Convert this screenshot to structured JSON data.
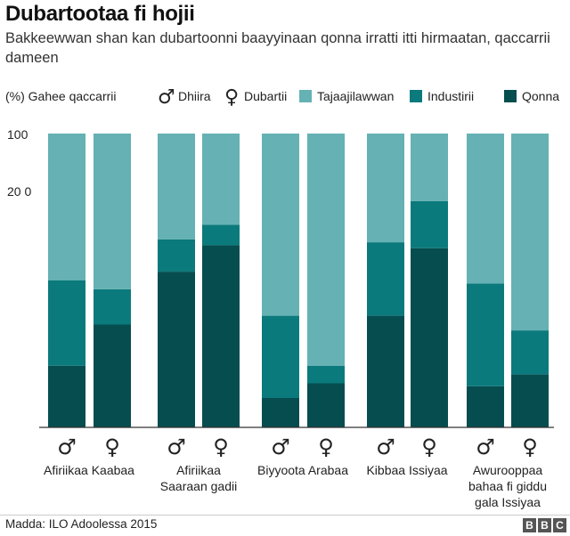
{
  "header": {
    "title": "Dubartootaa fi hojii",
    "subtitle": "Bakkeewwan shan kan dubartoonni baayyinaan qonna irratti itti hirmaatan, qaccarrii dameen"
  },
  "legend": {
    "male": {
      "symbol": "♂",
      "label": "Dhiira"
    },
    "female": {
      "symbol": "♀",
      "label": "Dubartii"
    },
    "series": [
      {
        "name": "Tajaajilawwan",
        "color": "#65b1b3"
      },
      {
        "name": "Industirii",
        "color": "#0b7a7c"
      },
      {
        "name": "Qonna",
        "color": "#064d50"
      }
    ]
  },
  "footer": {
    "source": "Madda: ILO Adoolessa 2015",
    "logo": [
      "B",
      "B",
      "C"
    ]
  },
  "chart_data": {
    "type": "bar",
    "stacked": true,
    "ylabel": "(%) Gahee qaccarrii",
    "y_ticks": [
      "100",
      "20 0"
    ],
    "ylim": [
      0,
      100
    ],
    "groups": [
      {
        "label": "Afiriikaa Kaabaa"
      },
      {
        "label": "Afiriikaa Saaraan gadii"
      },
      {
        "label": "Biyyoota Arabaa"
      },
      {
        "label": "Kibbaa Issiyaa"
      },
      {
        "label": "Awurooppaa bahaa fi giddu gala Issiyaa"
      }
    ],
    "bars": [
      {
        "group": 0,
        "gender": "male",
        "Qonna": 21,
        "Industirii": 29,
        "Tajaajilawwan": 50
      },
      {
        "group": 0,
        "gender": "female",
        "Qonna": 35,
        "Industirii": 12,
        "Tajaajilawwan": 53
      },
      {
        "group": 1,
        "gender": "male",
        "Qonna": 53,
        "Industirii": 11,
        "Tajaajilawwan": 36
      },
      {
        "group": 1,
        "gender": "female",
        "Qonna": 62,
        "Industirii": 7,
        "Tajaajilawwan": 31
      },
      {
        "group": 2,
        "gender": "male",
        "Qonna": 10,
        "Industirii": 28,
        "Tajaajilawwan": 62
      },
      {
        "group": 2,
        "gender": "female",
        "Qonna": 15,
        "Industirii": 6,
        "Tajaajilawwan": 79
      },
      {
        "group": 3,
        "gender": "male",
        "Qonna": 38,
        "Industirii": 25,
        "Tajaajilawwan": 37
      },
      {
        "group": 3,
        "gender": "female",
        "Qonna": 61,
        "Industirii": 16,
        "Tajaajilawwan": 23
      },
      {
        "group": 4,
        "gender": "male",
        "Qonna": 14,
        "Industirii": 35,
        "Tajaajilawwan": 51
      },
      {
        "group": 4,
        "gender": "female",
        "Qonna": 18,
        "Industirii": 15,
        "Tajaajilawwan": 67
      }
    ]
  }
}
